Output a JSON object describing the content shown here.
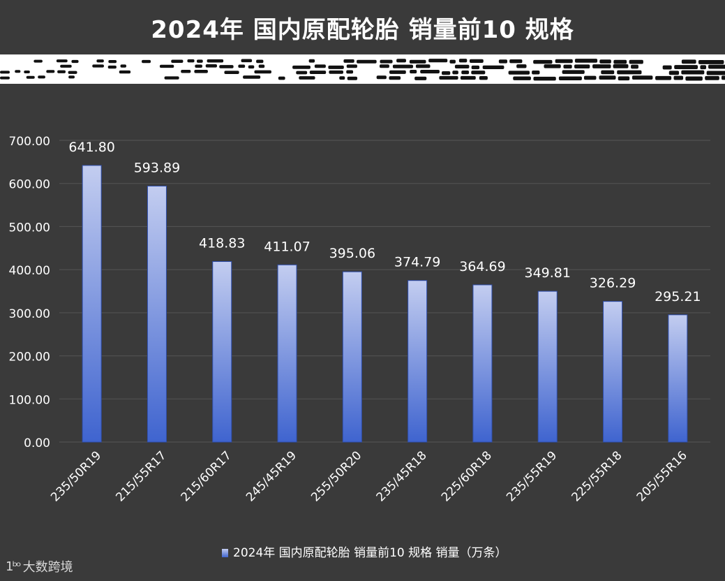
{
  "page_title": "2024年 国内原配轮胎 销量前10 规格",
  "chart_data": {
    "type": "bar",
    "title": "",
    "categories": [
      "235/50R19",
      "215/55R17",
      "215/60R17",
      "245/45R19",
      "255/50R20",
      "235/45R18",
      "225/60R18",
      "235/55R19",
      "225/55R18",
      "205/55R16"
    ],
    "series": [
      {
        "name": "2024年 国内原配轮胎 销量前10 规格 销量（万条）",
        "values": [
          641.8,
          593.89,
          418.83,
          411.07,
          395.06,
          374.79,
          364.69,
          349.81,
          326.29,
          295.21
        ]
      }
    ],
    "data_labels": [
      "641.80",
      "593.89",
      "418.83",
      "411.07",
      "395.06",
      "374.79",
      "364.69",
      "349.81",
      "326.29",
      "295.21"
    ],
    "y_ticks": [
      "0.00",
      "100.00",
      "200.00",
      "300.00",
      "400.00",
      "500.00",
      "600.00",
      "700.00"
    ],
    "ylim": [
      0,
      700
    ],
    "grid": true,
    "legend_position": "bottom",
    "colors": {
      "bar_top": "#c3cdf0",
      "bar_bottom": "#3f64cf",
      "grid": "#555555",
      "text": "#ffffff",
      "background": "#3a3a3a"
    }
  },
  "watermark": {
    "mark": "1ᵇᵒ",
    "text": "大数跨境"
  }
}
